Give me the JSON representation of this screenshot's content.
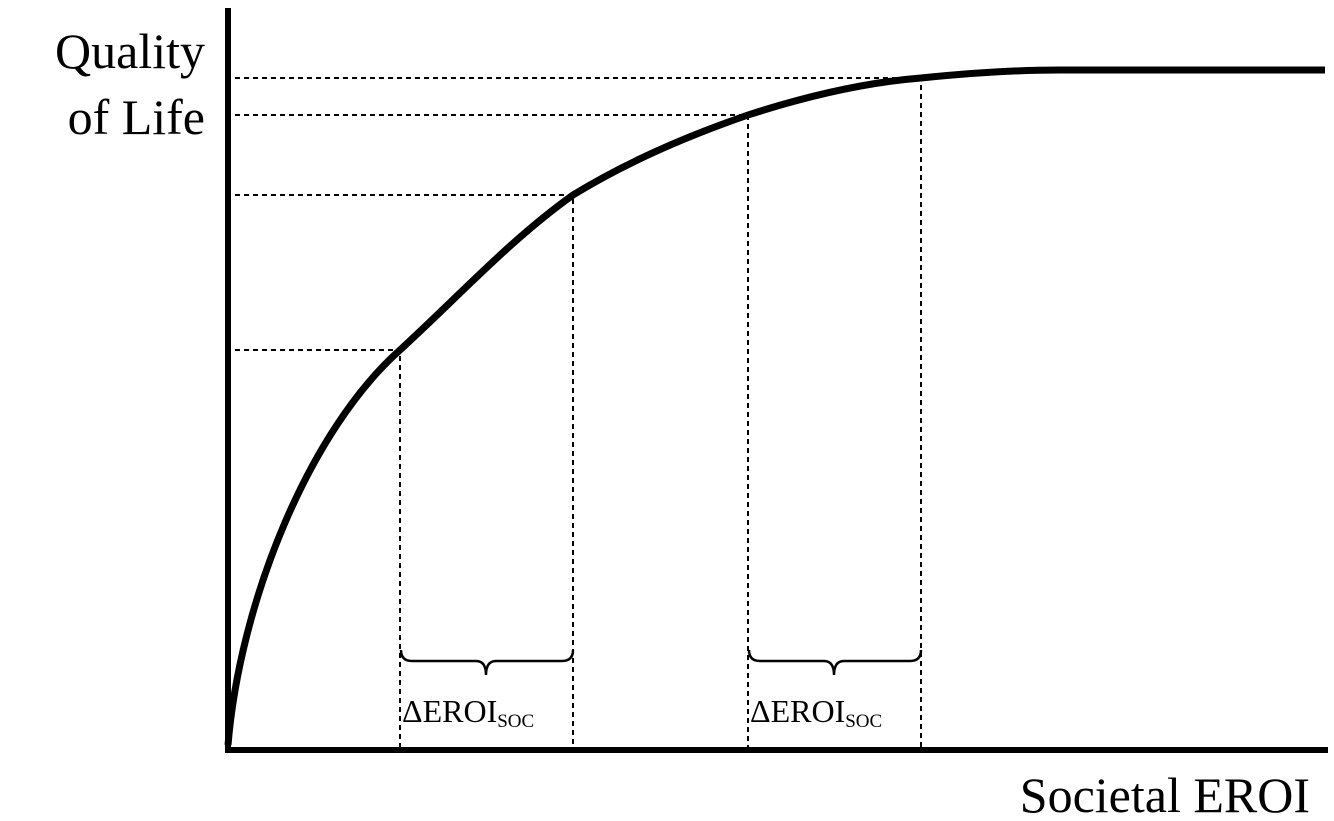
{
  "y_axis_label": [
    "Quality",
    "of Life"
  ],
  "x_axis_label": "Societal EROI",
  "annotations": [
    {
      "main": "ΔEROI",
      "sub": "SOC"
    },
    {
      "main": "ΔEROI",
      "sub": "SOC"
    }
  ]
}
